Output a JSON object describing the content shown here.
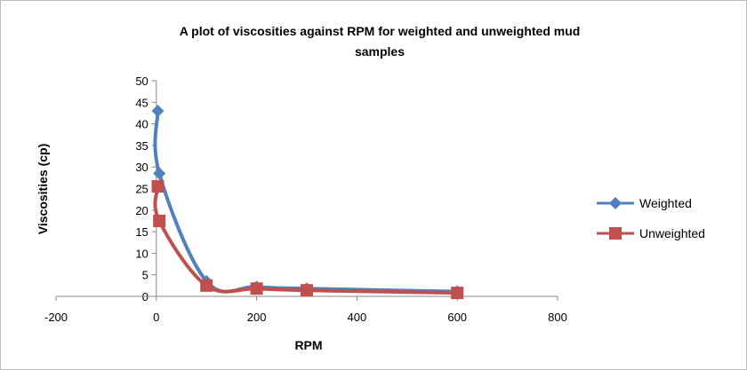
{
  "chart_data": {
    "type": "scatter",
    "title": "A plot of viscosities against RPM for weighted and unweighted mud samples",
    "title_lines": [
      "A plot of viscosities against RPM for weighted and unweighted mud",
      "samples"
    ],
    "xlabel": "RPM",
    "ylabel": "Viscosities (cp)",
    "xlim": [
      -200,
      800
    ],
    "ylim": [
      0,
      50
    ],
    "xticks": [
      -200,
      0,
      200,
      400,
      600,
      800
    ],
    "yticks": [
      0,
      5,
      10,
      15,
      20,
      25,
      30,
      35,
      40,
      45,
      50
    ],
    "grid": false,
    "legend_position": "right",
    "smoothed_lines": true,
    "series": [
      {
        "name": "Weighted",
        "color": "#4f81bd",
        "marker": "diamond",
        "x": [
          3,
          6,
          100,
          200,
          300,
          600
        ],
        "y": [
          43,
          28.5,
          3.5,
          2.2,
          1.8,
          1.1
        ]
      },
      {
        "name": "Unweighted",
        "color": "#c0504d",
        "marker": "square",
        "x": [
          3,
          6,
          100,
          200,
          300,
          600
        ],
        "y": [
          25.5,
          17.5,
          2.5,
          1.8,
          1.4,
          0.8
        ]
      }
    ]
  }
}
